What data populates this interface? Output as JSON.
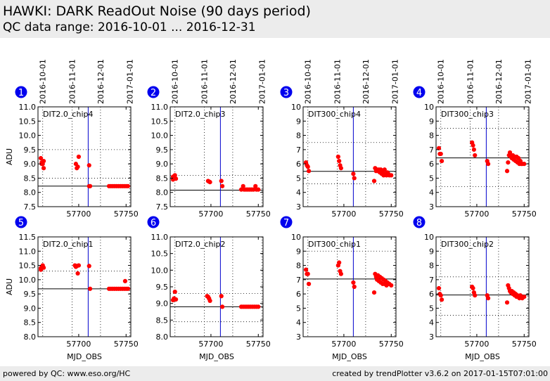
{
  "header": {
    "title": "HAWKI: DARK ReadOut Noise (90 days period)",
    "subtitle": "QC data range: 2016-10-01 ... 2016-12-31"
  },
  "footer": {
    "left": "powered by QC: www.eso.org/HC",
    "right": "created by trendPlotter v3.6.2 on 2017-01-15T07:01:00"
  },
  "shared": {
    "xlabel": "MJD_OBS",
    "ylabel": "ADU",
    "xlim": [
      57657,
      57755
    ],
    "xticks": [
      57700,
      57750
    ],
    "date_ticks": [
      {
        "label": "2016-10-01",
        "mjd": 57662
      },
      {
        "label": "2016-11-01",
        "mjd": 57693
      },
      {
        "label": "2016-12-01",
        "mjd": 57723
      },
      {
        "label": "2017-01-01",
        "mjd": 57754
      }
    ],
    "vline_mjd": 57710,
    "colors": {
      "points": "#ff0000",
      "vline": "#0000cc",
      "badge": "#0000ee",
      "reference": "#000000"
    }
  },
  "chart_data": [
    {
      "id": "1",
      "type": "scatter",
      "label": "DIT2.0_chip4",
      "ylim": [
        7.5,
        11.0
      ],
      "yticks": [
        7.5,
        8.0,
        8.5,
        9.0,
        9.5,
        10.0,
        10.5,
        11.0
      ],
      "reference": 8.22,
      "ygrid": [
        8.5,
        9.5
      ],
      "points": [
        [
          57660,
          9.2
        ],
        [
          57661,
          9.05
        ],
        [
          57661,
          9.0
        ],
        [
          57662,
          9.0
        ],
        [
          57663,
          8.85
        ],
        [
          57663,
          9.1
        ],
        [
          57697,
          9.0
        ],
        [
          57698,
          8.85
        ],
        [
          57699,
          8.9
        ],
        [
          57700,
          9.25
        ],
        [
          57711,
          8.95
        ],
        [
          57712,
          8.22
        ],
        [
          57711,
          8.22
        ],
        [
          57732,
          8.22
        ],
        [
          57734,
          8.22
        ],
        [
          57736,
          8.22
        ],
        [
          57738,
          8.22
        ],
        [
          57740,
          8.22
        ],
        [
          57742,
          8.22
        ],
        [
          57744,
          8.22
        ],
        [
          57746,
          8.22
        ],
        [
          57748,
          8.22
        ],
        [
          57750,
          8.22
        ],
        [
          57752,
          8.22
        ]
      ]
    },
    {
      "id": "2",
      "type": "scatter",
      "label": "DIT2.0_chip3",
      "ylim": [
        7.5,
        11.0
      ],
      "yticks": [
        7.5,
        8.0,
        8.5,
        9.0,
        9.5,
        10.0,
        10.5,
        11.0
      ],
      "reference": 8.08,
      "ygrid": [
        8.6
      ],
      "points": [
        [
          57660,
          8.55
        ],
        [
          57660,
          8.45
        ],
        [
          57661,
          8.5
        ],
        [
          57662,
          8.6
        ],
        [
          57663,
          8.48
        ],
        [
          57697,
          8.4
        ],
        [
          57698,
          8.38
        ],
        [
          57699,
          8.36
        ],
        [
          57711,
          8.4
        ],
        [
          57712,
          8.22
        ],
        [
          57732,
          8.1
        ],
        [
          57734,
          8.22
        ],
        [
          57735,
          8.1
        ],
        [
          57737,
          8.1
        ],
        [
          57739,
          8.1
        ],
        [
          57741,
          8.1
        ],
        [
          57743,
          8.1
        ],
        [
          57745,
          8.1
        ],
        [
          57747,
          8.22
        ],
        [
          57748,
          8.1
        ],
        [
          57750,
          8.1
        ]
      ]
    },
    {
      "id": "3",
      "type": "scatter",
      "label": "DIT300_chip4",
      "ylim": [
        3,
        10
      ],
      "yticks": [
        3,
        4,
        5,
        6,
        7,
        8,
        9,
        10
      ],
      "reference": 5.48,
      "ygrid": [
        4.6,
        7.5
      ],
      "points": [
        [
          57660,
          6.1
        ],
        [
          57661,
          5.9
        ],
        [
          57662,
          5.8
        ],
        [
          57663,
          5.5
        ],
        [
          57694,
          6.5
        ],
        [
          57695,
          6.2
        ],
        [
          57696,
          5.9
        ],
        [
          57697,
          5.7
        ],
        [
          57710,
          5.3
        ],
        [
          57711,
          5.0
        ],
        [
          57732,
          4.8
        ],
        [
          57733,
          5.7
        ],
        [
          57734,
          5.5
        ],
        [
          57735,
          5.6
        ],
        [
          57736,
          5.5
        ],
        [
          57737,
          5.6
        ],
        [
          57738,
          5.4
        ],
        [
          57739,
          5.6
        ],
        [
          57740,
          5.3
        ],
        [
          57741,
          5.5
        ],
        [
          57742,
          5.2
        ],
        [
          57743,
          5.6
        ],
        [
          57744,
          5.3
        ],
        [
          57745,
          5.2
        ],
        [
          57746,
          5.4
        ],
        [
          57747,
          5.3
        ],
        [
          57748,
          5.2
        ],
        [
          57750,
          5.2
        ]
      ]
    },
    {
      "id": "4",
      "type": "scatter",
      "label": "DIT300_chip3",
      "ylim": [
        3,
        10
      ],
      "yticks": [
        3,
        4,
        5,
        6,
        7,
        8,
        9,
        10
      ],
      "reference": 6.42,
      "ygrid": [
        4.4,
        8.5
      ],
      "points": [
        [
          57660,
          7.1
        ],
        [
          57661,
          6.7
        ],
        [
          57662,
          6.7
        ],
        [
          57663,
          6.2
        ],
        [
          57695,
          7.5
        ],
        [
          57696,
          7.3
        ],
        [
          57697,
          7.0
        ],
        [
          57698,
          6.6
        ],
        [
          57711,
          6.2
        ],
        [
          57712,
          6.0
        ],
        [
          57732,
          5.5
        ],
        [
          57733,
          6.1
        ],
        [
          57734,
          6.6
        ],
        [
          57735,
          6.8
        ],
        [
          57736,
          6.5
        ],
        [
          57737,
          6.4
        ],
        [
          57738,
          6.6
        ],
        [
          57739,
          6.3
        ],
        [
          57740,
          6.5
        ],
        [
          57741,
          6.2
        ],
        [
          57742,
          6.5
        ],
        [
          57743,
          6.1
        ],
        [
          57744,
          6.4
        ],
        [
          57745,
          6.0
        ],
        [
          57746,
          6.2
        ],
        [
          57747,
          6.0
        ],
        [
          57748,
          6.0
        ],
        [
          57750,
          6.0
        ]
      ]
    },
    {
      "id": "5",
      "type": "scatter",
      "label": "DIT2.0_chip1",
      "ylim": [
        8.0,
        11.5
      ],
      "yticks": [
        8.0,
        8.5,
        9.0,
        9.5,
        10.0,
        10.5,
        11.0,
        11.5
      ],
      "reference": 9.68,
      "ygrid": [
        10.3
      ],
      "points": [
        [
          57660,
          10.4
        ],
        [
          57660,
          10.35
        ],
        [
          57661,
          10.45
        ],
        [
          57662,
          10.5
        ],
        [
          57663,
          10.42
        ],
        [
          57696,
          10.5
        ],
        [
          57697,
          10.45
        ],
        [
          57698,
          10.48
        ],
        [
          57699,
          10.22
        ],
        [
          57700,
          10.5
        ],
        [
          57711,
          10.48
        ],
        [
          57712,
          9.68
        ],
        [
          57732,
          9.68
        ],
        [
          57734,
          9.68
        ],
        [
          57736,
          9.68
        ],
        [
          57738,
          9.68
        ],
        [
          57740,
          9.68
        ],
        [
          57742,
          9.68
        ],
        [
          57744,
          9.68
        ],
        [
          57746,
          9.68
        ],
        [
          57748,
          9.68
        ],
        [
          57749,
          9.95
        ],
        [
          57750,
          9.68
        ],
        [
          57752,
          9.68
        ]
      ]
    },
    {
      "id": "6",
      "type": "scatter",
      "label": "DIT2.0_chip2",
      "ylim": [
        8.0,
        11.0
      ],
      "yticks": [
        8.0,
        8.5,
        9.0,
        9.5,
        10.0,
        10.5,
        11.0
      ],
      "reference": 8.9,
      "ygrid": [
        8.45,
        9.3
      ],
      "points": [
        [
          57660,
          9.1
        ],
        [
          57661,
          9.15
        ],
        [
          57662,
          9.35
        ],
        [
          57663,
          9.12
        ],
        [
          57696,
          9.22
        ],
        [
          57697,
          9.2
        ],
        [
          57698,
          9.15
        ],
        [
          57699,
          9.08
        ],
        [
          57711,
          9.22
        ],
        [
          57712,
          8.9
        ],
        [
          57732,
          8.9
        ],
        [
          57734,
          8.9
        ],
        [
          57736,
          8.9
        ],
        [
          57738,
          8.9
        ],
        [
          57740,
          8.9
        ],
        [
          57742,
          8.9
        ],
        [
          57744,
          8.9
        ],
        [
          57746,
          8.9
        ],
        [
          57748,
          8.9
        ],
        [
          57750,
          8.9
        ]
      ]
    },
    {
      "id": "7",
      "type": "scatter",
      "label": "DIT300_chip1",
      "ylim": [
        3,
        10
      ],
      "yticks": [
        3,
        4,
        5,
        6,
        7,
        8,
        9,
        10
      ],
      "reference": 7.05,
      "ygrid": [
        9.0
      ],
      "points": [
        [
          57660,
          7.7
        ],
        [
          57661,
          7.4
        ],
        [
          57662,
          7.4
        ],
        [
          57663,
          6.7
        ],
        [
          57694,
          8.0
        ],
        [
          57695,
          8.2
        ],
        [
          57696,
          7.6
        ],
        [
          57697,
          7.4
        ],
        [
          57710,
          6.8
        ],
        [
          57711,
          6.5
        ],
        [
          57732,
          6.1
        ],
        [
          57733,
          7.4
        ],
        [
          57734,
          7.2
        ],
        [
          57735,
          7.0
        ],
        [
          57736,
          7.3
        ],
        [
          57737,
          6.9
        ],
        [
          57738,
          7.2
        ],
        [
          57739,
          6.8
        ],
        [
          57740,
          7.1
        ],
        [
          57741,
          6.7
        ],
        [
          57742,
          7.0
        ],
        [
          57743,
          6.7
        ],
        [
          57744,
          6.9
        ],
        [
          57745,
          6.6
        ],
        [
          57746,
          6.8
        ],
        [
          57747,
          6.7
        ],
        [
          57748,
          6.7
        ],
        [
          57750,
          6.6
        ]
      ]
    },
    {
      "id": "8",
      "type": "scatter",
      "label": "DIT300_chip2",
      "ylim": [
        3,
        10
      ],
      "yticks": [
        3,
        4,
        5,
        6,
        7,
        8,
        9,
        10
      ],
      "reference": 5.93,
      "ygrid": [
        4.5,
        7.2
      ],
      "points": [
        [
          57660,
          6.4
        ],
        [
          57661,
          6.0
        ],
        [
          57662,
          5.9
        ],
        [
          57663,
          5.6
        ],
        [
          57695,
          6.5
        ],
        [
          57696,
          6.4
        ],
        [
          57697,
          6.1
        ],
        [
          57698,
          5.9
        ],
        [
          57711,
          5.9
        ],
        [
          57712,
          5.7
        ],
        [
          57732,
          5.4
        ],
        [
          57733,
          6.6
        ],
        [
          57734,
          6.4
        ],
        [
          57735,
          6.2
        ],
        [
          57736,
          6.1
        ],
        [
          57737,
          6.2
        ],
        [
          57738,
          6.0
        ],
        [
          57739,
          6.1
        ],
        [
          57740,
          5.9
        ],
        [
          57741,
          6.0
        ],
        [
          57742,
          5.8
        ],
        [
          57743,
          5.9
        ],
        [
          57744,
          5.8
        ],
        [
          57745,
          5.7
        ],
        [
          57746,
          5.9
        ],
        [
          57747,
          5.8
        ],
        [
          57748,
          5.7
        ],
        [
          57750,
          5.8
        ]
      ]
    }
  ]
}
